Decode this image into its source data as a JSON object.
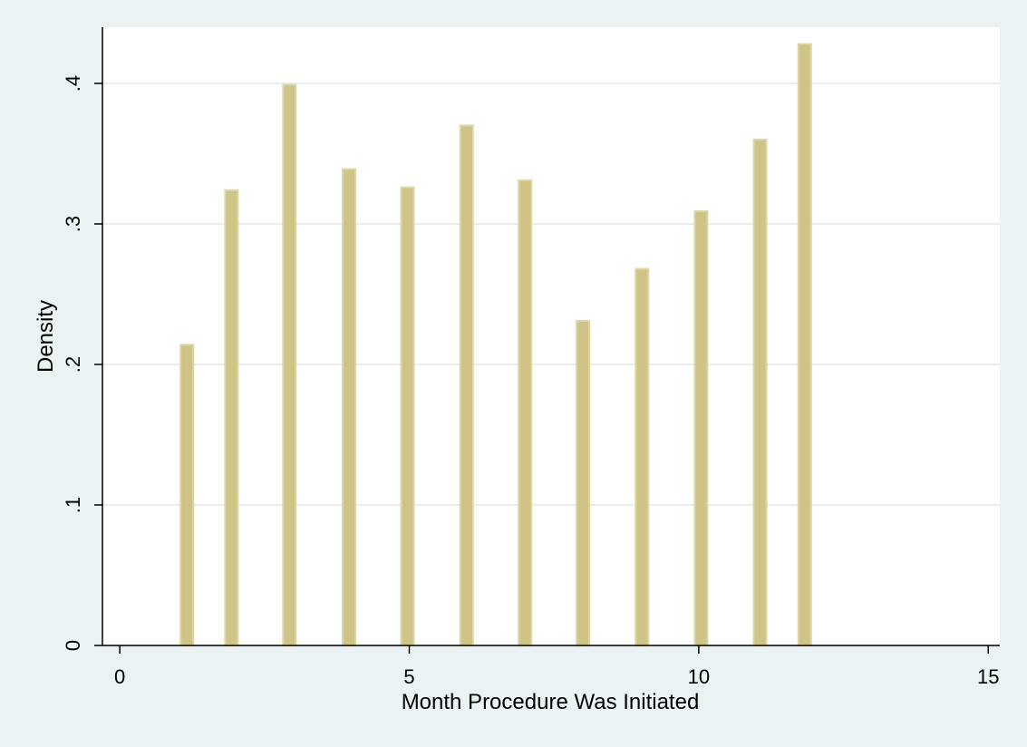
{
  "chart_data": {
    "type": "bar",
    "title": "",
    "xlabel": "Month Procedure Was Initiated",
    "ylabel": "Density",
    "xlim": [
      -0.3,
      15.2
    ],
    "ylim": [
      0,
      0.44
    ],
    "xticks": [
      0,
      5,
      10,
      15
    ],
    "xtick_labels": [
      "0",
      "5",
      "10",
      "15"
    ],
    "yticks": [
      0,
      0.1,
      0.2,
      0.3,
      0.4
    ],
    "ytick_labels": [
      "0",
      ".1",
      ".2",
      ".3",
      ".4"
    ],
    "grid": true,
    "bar_width": 0.22,
    "x": [
      1.16,
      1.93,
      2.93,
      3.96,
      4.97,
      5.99,
      7.0,
      8.0,
      9.02,
      10.04,
      11.06,
      11.83
    ],
    "values": [
      0.214,
      0.324,
      0.399,
      0.339,
      0.326,
      0.37,
      0.331,
      0.231,
      0.268,
      0.309,
      0.36,
      0.428
    ],
    "colors": {
      "bar_fill": "#cfc487",
      "bar_edge": "#ded6a5",
      "plot_bg": "#ffffff",
      "outer_bg": "#eaf2f3",
      "grid": "#e6eef0"
    }
  }
}
